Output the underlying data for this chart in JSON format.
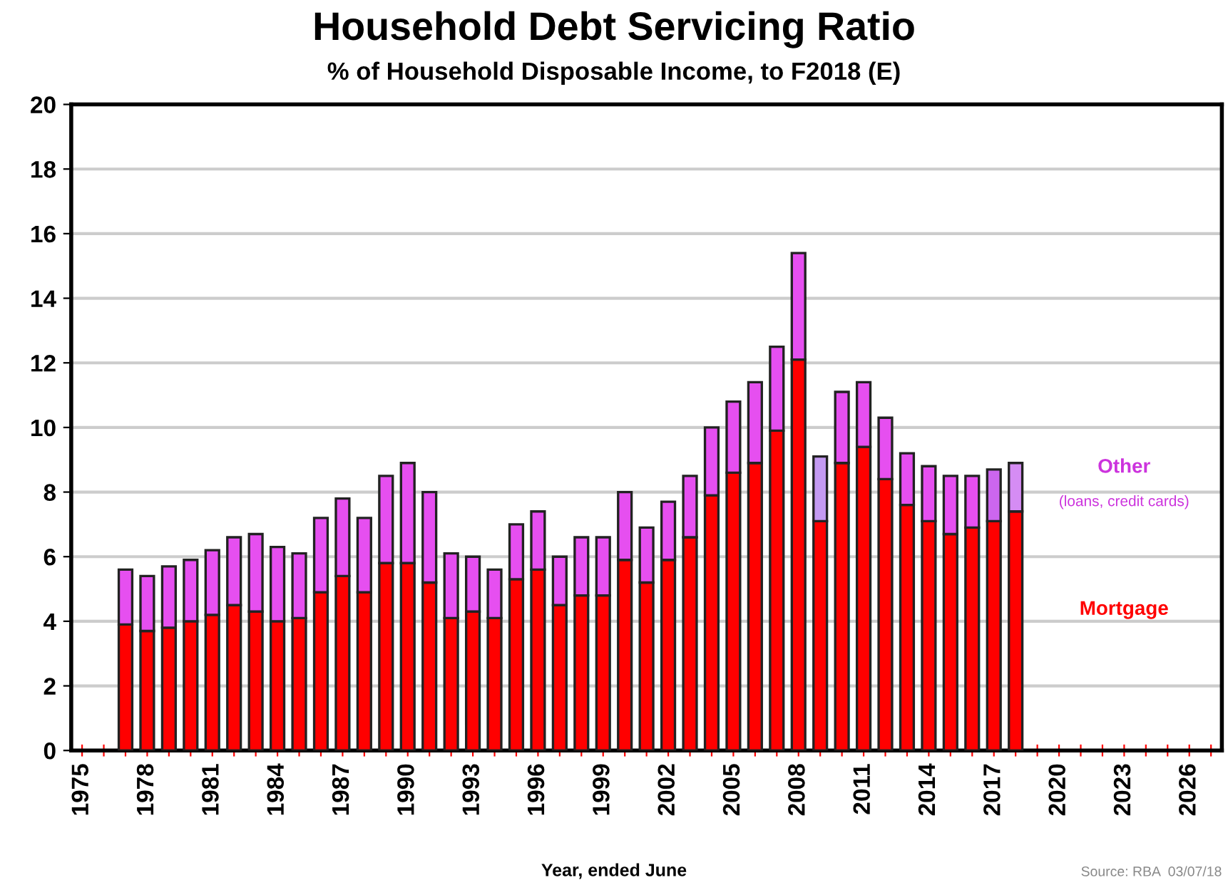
{
  "chart_data": {
    "type": "bar",
    "stacked": true,
    "title": "Household Debt Servicing Ratio",
    "subtitle": "% of Household Disposable Income, to F2018 (E)",
    "xlabel": "Year, ended June",
    "categories": [
      "1975",
      null,
      null,
      "1978",
      null,
      null,
      "1981",
      null,
      null,
      "1984",
      null,
      null,
      "1987",
      null,
      null,
      "1990",
      null,
      null,
      "1993",
      null,
      null,
      "1996",
      null,
      null,
      "1999",
      null,
      null,
      "2002",
      null,
      null,
      "2005",
      null,
      null,
      "2008",
      null,
      null,
      "2011",
      null,
      null,
      "2014",
      null,
      null,
      "2017",
      null,
      null,
      "2020",
      null,
      null,
      "2023",
      null,
      null,
      "2026",
      null
    ],
    "series": [
      {
        "name": "Mortgage",
        "color": "#ff0000",
        "values": [
          null,
          null,
          3.9,
          3.7,
          3.8,
          4.0,
          4.2,
          4.5,
          4.3,
          4.0,
          4.1,
          4.9,
          5.4,
          4.9,
          5.8,
          5.8,
          5.2,
          4.1,
          4.3,
          4.1,
          5.3,
          5.6,
          4.5,
          4.8,
          4.8,
          5.9,
          5.2,
          5.9,
          6.6,
          7.9,
          8.6,
          8.9,
          9.9,
          12.1,
          7.1,
          8.9,
          9.4,
          8.4,
          7.6,
          7.1,
          6.7,
          6.9,
          7.1,
          7.4,
          null,
          null,
          null,
          null,
          null,
          null,
          null,
          null,
          null
        ]
      },
      {
        "name": "Other",
        "color": "#cc33dd",
        "values": [
          null,
          null,
          1.7,
          1.7,
          1.9,
          1.9,
          2.0,
          2.1,
          2.4,
          2.3,
          2.0,
          2.3,
          2.4,
          2.3,
          2.7,
          3.1,
          2.8,
          2.0,
          1.7,
          1.5,
          1.7,
          1.8,
          1.5,
          1.8,
          1.8,
          2.1,
          1.7,
          1.8,
          1.9,
          2.1,
          2.2,
          2.5,
          2.6,
          3.3,
          2.0,
          2.2,
          2.0,
          1.9,
          1.6,
          1.7,
          1.8,
          1.6,
          1.6,
          1.5,
          null,
          null,
          null,
          null,
          null,
          null,
          null,
          null,
          null
        ],
        "colors": [
          null,
          null,
          "#e64ff0",
          "#e64ff0",
          "#e64ff0",
          "#e64ff0",
          "#e64ff0",
          "#e64ff0",
          "#e64ff0",
          "#e64ff0",
          "#e64ff0",
          "#e64ff0",
          "#e64ff0",
          "#e64ff0",
          "#e64ff0",
          "#e64ff0",
          "#e64ff0",
          "#e64ff0",
          "#e64ff0",
          "#e64ff0",
          "#e64ff0",
          "#e64ff0",
          "#e64ff0",
          "#e64ff0",
          "#e64ff0",
          "#e64ff0",
          "#e64ff0",
          "#e64ff0",
          "#e64ff0",
          "#e64ff0",
          "#e64ff0",
          "#e64ff0",
          "#e64ff0",
          "#e64ff0",
          "#c49af2",
          "#e64ff0",
          "#e64ff0",
          "#e64ff0",
          "#e64ff0",
          "#e64ff0",
          "#e64ff0",
          "#e64ff0",
          "#cc66ee",
          "#d58cf4",
          null,
          null,
          null,
          null,
          null,
          null,
          null,
          null,
          null
        ]
      }
    ],
    "ylim": [
      0,
      20
    ],
    "yticks": [
      0,
      2,
      4,
      6,
      8,
      10,
      12,
      14,
      16,
      18,
      20
    ],
    "grid": "y",
    "legend": false,
    "annotations": [
      "(loans, credit cards)",
      "Source: RBA  03/07/18"
    ]
  }
}
